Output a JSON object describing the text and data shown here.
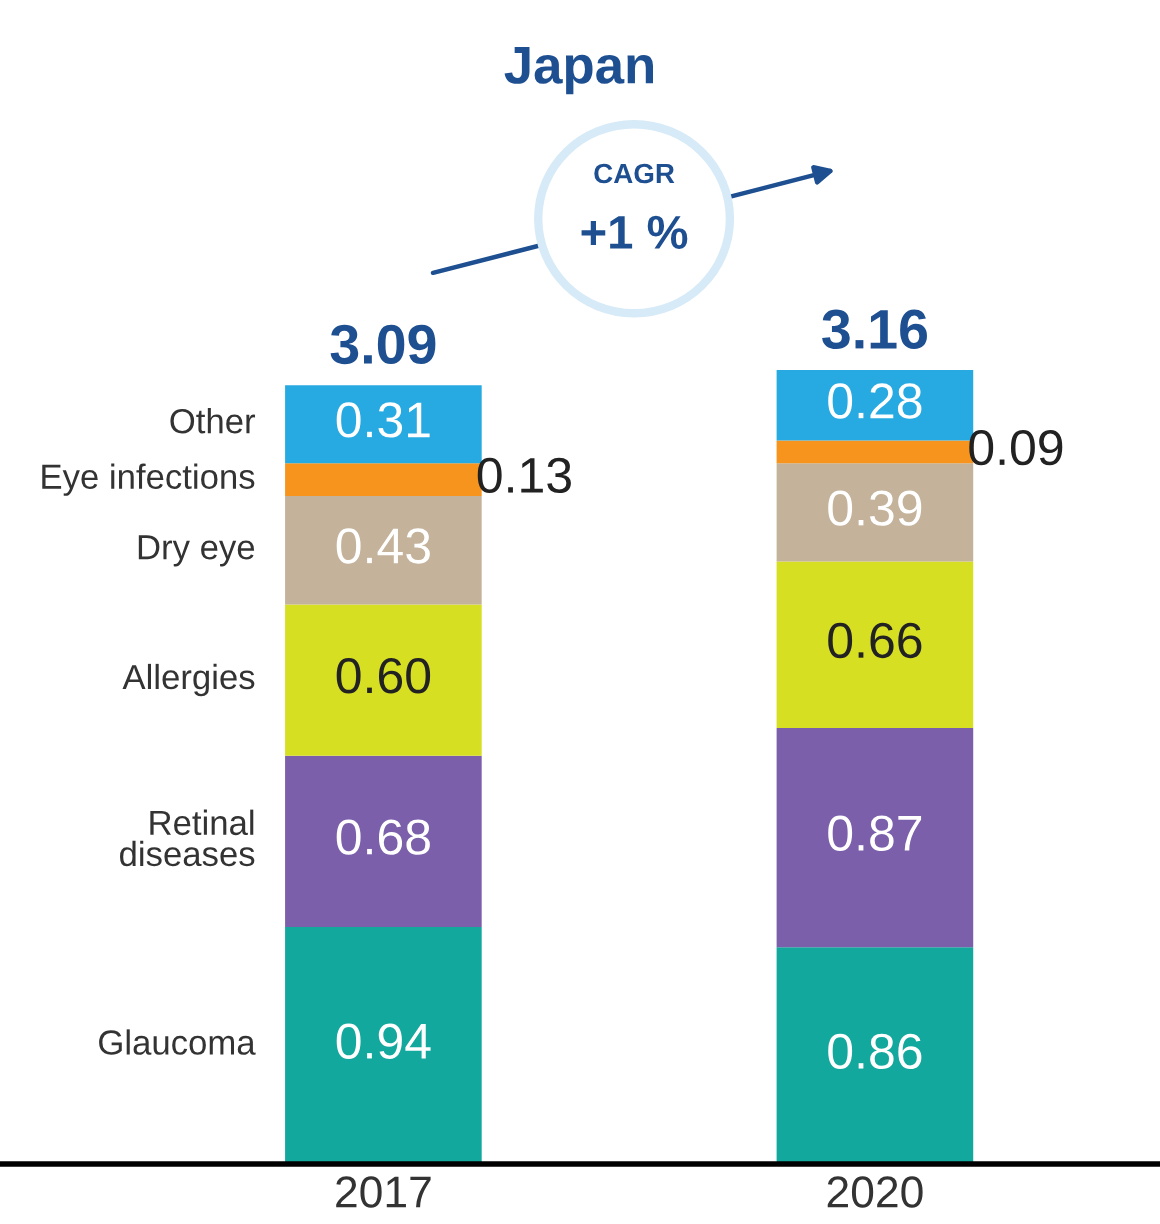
{
  "chart_data": {
    "type": "bar",
    "stacked": true,
    "title": "Japan",
    "categories": [
      "2017",
      "2020"
    ],
    "series": [
      {
        "name": "Glaucoma",
        "color": "#13a89e",
        "values": [
          0.94,
          0.86
        ],
        "value_labels": [
          "0.94",
          "0.86"
        ]
      },
      {
        "name": "Retinal\ndiseases",
        "color": "#7b5fab",
        "values": [
          0.68,
          0.87
        ],
        "value_labels": [
          "0.68",
          "0.87"
        ]
      },
      {
        "name": "Allergies",
        "color": "#d7df23",
        "values": [
          0.6,
          0.66
        ],
        "value_labels": [
          "0.60",
          "0.66"
        ]
      },
      {
        "name": "Dry eye",
        "color": "#c4b29a",
        "values": [
          0.43,
          0.39
        ],
        "value_labels": [
          "0.43",
          "0.39"
        ]
      },
      {
        "name": "Eye infections",
        "color": "#f7941d",
        "values": [
          0.13,
          0.09
        ],
        "value_labels": [
          "0.13",
          "0.09"
        ]
      },
      {
        "name": "Other",
        "color": "#27aae1",
        "values": [
          0.31,
          0.28
        ],
        "value_labels": [
          "0.31",
          "0.28"
        ]
      }
    ],
    "totals": [
      "3.09",
      "3.16"
    ],
    "annotations": [
      "CAGR",
      "+1 %"
    ],
    "legend": false,
    "grid": false
  }
}
